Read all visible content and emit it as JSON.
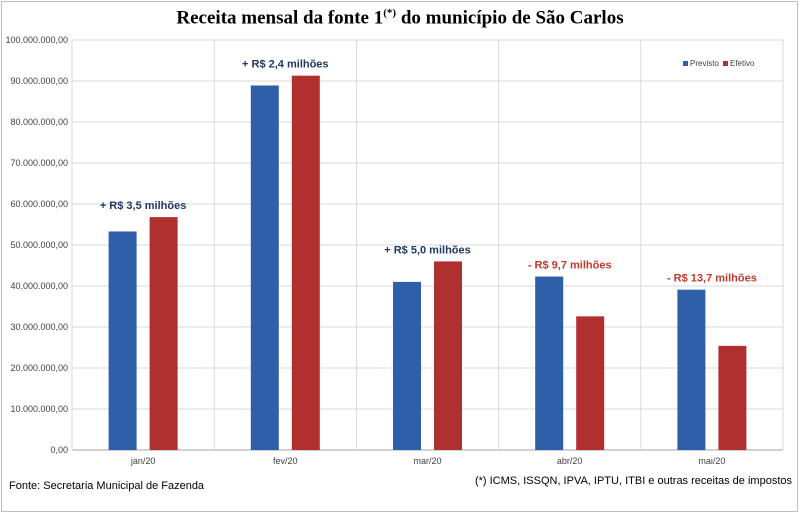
{
  "chart_data": {
    "type": "bar",
    "title_main": "Receita mensal da fonte 1",
    "title_sup": "(*)",
    "title_rest": " do município de São Carlos",
    "categories": [
      "jan/20",
      "fev/20",
      "mar/20",
      "abr/20",
      "mai/20"
    ],
    "series": [
      {
        "name": "Previsto",
        "color": "#2e5fa8",
        "values": [
          53300000,
          88900000,
          41000000,
          42300000,
          39100000
        ]
      },
      {
        "name": "Efetivo",
        "color": "#b03030",
        "values": [
          56800000,
          91300000,
          46000000,
          32600000,
          25400000
        ]
      }
    ],
    "ylim": [
      0,
      100000000
    ],
    "yticks": [
      "0,00",
      "10.000.000,00",
      "20.000.000,00",
      "30.000.000,00",
      "40.000.000,00",
      "50.000.000,00",
      "60.000.000,00",
      "70.000.000,00",
      "80.000.000,00",
      "90.000.000,00",
      "100.000.000,00"
    ],
    "annotations": [
      "+ R$ 3,5 milhões",
      "+ R$ 2,4 milhões",
      "+ R$ 5,0 milhões",
      "- R$ 9,7 milhões",
      "- R$ 13,7 milhões"
    ],
    "annotation_colors": [
      "#1f3864",
      "#1f3864",
      "#1f3864",
      "#c0392b",
      "#c0392b"
    ],
    "legend_position": "top-right",
    "grid": true
  },
  "footer": {
    "source": "Fonte: Secretaria Municipal de Fazenda",
    "footnote": "(*) ICMS, ISSQN, IPVA, IPTU, ITBI e outras receitas de impostos"
  }
}
